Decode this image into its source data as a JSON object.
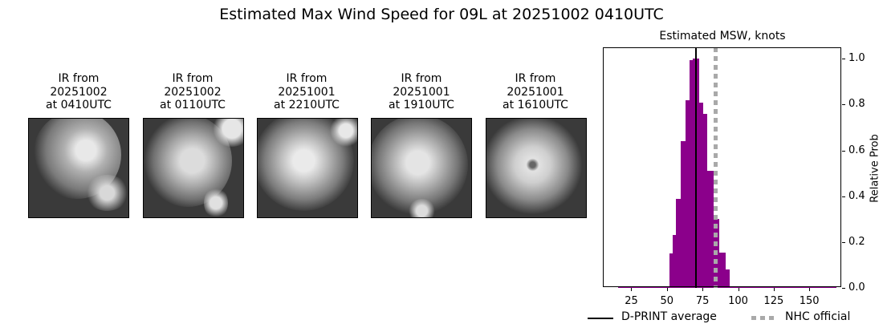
{
  "title": "Estimated Max Wind Speed for 09L at 20251002 0410UTC",
  "thumbnails": [
    {
      "line1": "IR from",
      "line2": "20251002",
      "line3": "at 0410UTC"
    },
    {
      "line1": "IR from",
      "line2": "20251002",
      "line3": "at 0110UTC"
    },
    {
      "line1": "IR from",
      "line2": "20251001",
      "line3": "at 2210UTC"
    },
    {
      "line1": "IR from",
      "line2": "20251001",
      "line3": "at 1910UTC"
    },
    {
      "line1": "IR from",
      "line2": "20251001",
      "line3": "at 1610UTC"
    }
  ],
  "chart_data": {
    "type": "bar",
    "title": "Estimated MSW, knots",
    "xlabel": "",
    "ylabel": "Relative Prob",
    "xlim": [
      5,
      173
    ],
    "ylim": [
      0,
      1.05
    ],
    "xticks": [
      25,
      50,
      75,
      100,
      125,
      150
    ],
    "yticks": [
      "0.0",
      "0.2",
      "0.4",
      "0.6",
      "0.8",
      "1.0"
    ],
    "ytick_values": [
      0,
      0.2,
      0.4,
      0.6,
      0.8,
      1.0
    ],
    "grid": false,
    "bar_color": "#8b008b",
    "bins": [
      {
        "x0": 15.5,
        "x1": 52,
        "value": 0.005
      },
      {
        "x0": 52,
        "x1": 54,
        "value": 0.15
      },
      {
        "x0": 54,
        "x1": 56.5,
        "value": 0.23
      },
      {
        "x0": 56.5,
        "x1": 59.5,
        "value": 0.39
      },
      {
        "x0": 59.5,
        "x1": 63,
        "value": 0.64
      },
      {
        "x0": 63,
        "x1": 66,
        "value": 0.82
      },
      {
        "x0": 66,
        "x1": 68,
        "value": 0.995
      },
      {
        "x0": 68,
        "x1": 72.5,
        "value": 1.0
      },
      {
        "x0": 72.5,
        "x1": 75.5,
        "value": 0.81
      },
      {
        "x0": 75.5,
        "x1": 78.5,
        "value": 0.76
      },
      {
        "x0": 78.5,
        "x1": 83,
        "value": 0.51
      },
      {
        "x0": 83,
        "x1": 87,
        "value": 0.3
      },
      {
        "x0": 87,
        "x1": 91.5,
        "value": 0.155
      },
      {
        "x0": 91.5,
        "x1": 94,
        "value": 0.08
      },
      {
        "x0": 94,
        "x1": 169,
        "value": 0.005
      }
    ],
    "dprint_average": 70.5,
    "nhc_official": 84,
    "legend": [
      {
        "label": "D-PRINT average",
        "style": "solid black line"
      },
      {
        "label": "NHC official",
        "style": "dotted gray line"
      }
    ],
    "legend_position": "below"
  }
}
